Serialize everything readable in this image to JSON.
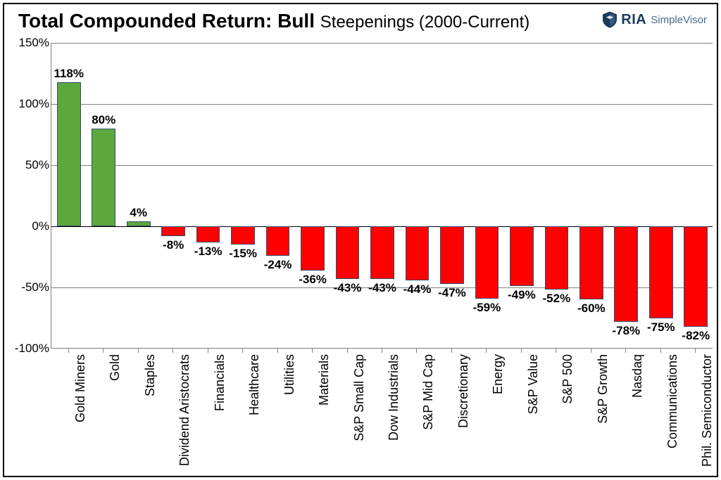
{
  "title_main": "Total Compounded Return: Bull ",
  "title_sub": "Steepenings (2000-Current)",
  "logo": {
    "ria": "RIA",
    "simplevisor": "SimpleVisor"
  },
  "chart": {
    "type": "bar",
    "background_color": "#ffffff",
    "border_color": "#000000",
    "grid_color": "#7f7f7f",
    "bar_border_color": "#2f4f6f",
    "positive_color": "#5ca83d",
    "negative_color": "#ff0000",
    "ylim_min": -100,
    "ylim_max": 150,
    "ytick_step": 50,
    "yticks": [
      {
        "v": 150,
        "label": "150%"
      },
      {
        "v": 100,
        "label": "100%"
      },
      {
        "v": 50,
        "label": "50%"
      },
      {
        "v": 0,
        "label": "0%"
      },
      {
        "v": -50,
        "label": "-50%"
      },
      {
        "v": -100,
        "label": "-100%"
      }
    ],
    "title_fontsize": 28,
    "label_fontsize": 17,
    "xtick_fontsize": 18,
    "bar_width_ratio": 0.68,
    "categories": [
      "Gold Miners",
      "Gold",
      "Staples",
      "Dividend Aristocrats",
      "Financials",
      "Healthcare",
      "Utilities",
      "Materials",
      "S&P Small Cap",
      "Dow Industrials",
      "S&P Mid Cap",
      "Discretionary",
      "Energy",
      "S&P Value",
      "S&P 500",
      "S&P Growth",
      "Nasdaq",
      "Communications",
      "Phil. Semiconductor"
    ],
    "values": [
      118,
      80,
      4,
      -8,
      -13,
      -15,
      -24,
      -36,
      -43,
      -43,
      -44,
      -47,
      -59,
      -49,
      -52,
      -60,
      -78,
      -75,
      -82
    ],
    "value_labels": [
      "118%",
      "80%",
      "4%",
      "-8%",
      "-13%",
      "-15%",
      "-24%",
      "-36%",
      "-43%",
      "-43%",
      "-44%",
      "-47%",
      "-59%",
      "-49%",
      "-52%",
      "-60%",
      "-78%",
      "-75%",
      "-82%"
    ]
  }
}
